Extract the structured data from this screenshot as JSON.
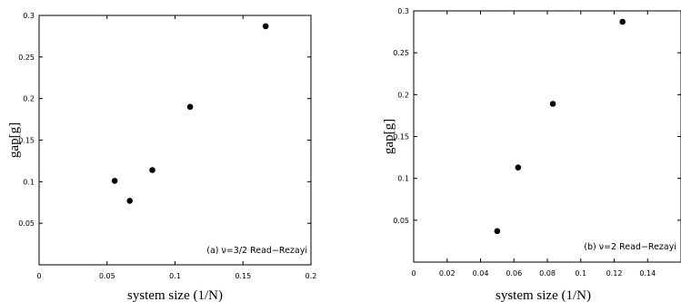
{
  "chart_data": [
    {
      "type": "scatter",
      "xlabel": "system size (1/N)",
      "ylabel": "gap[g]",
      "annotation": "(a)  ν=3/2  Read−Rezayi",
      "xlim": [
        0,
        0.2
      ],
      "ylim": [
        0,
        0.3
      ],
      "xticks": [
        0,
        0.05,
        0.1,
        0.15,
        0.2
      ],
      "xtick_labels": [
        "0",
        "0.05",
        "0.1",
        "0.15",
        "0.2"
      ],
      "yticks": [
        0.05,
        0.1,
        0.15,
        0.2,
        0.25,
        0.3
      ],
      "ytick_labels": [
        "0.05",
        "0.1",
        "0.15",
        "0.2",
        "0.25",
        "0.3"
      ],
      "grid": false,
      "points": [
        {
          "x": 0.0556,
          "y": 0.101
        },
        {
          "x": 0.0667,
          "y": 0.077
        },
        {
          "x": 0.0833,
          "y": 0.114
        },
        {
          "x": 0.1111,
          "y": 0.19
        },
        {
          "x": 0.1667,
          "y": 0.287
        }
      ]
    },
    {
      "type": "scatter",
      "xlabel": "system size (1/N)",
      "ylabel": "gap[g]",
      "annotation": "(b)  ν=2  Read−Rezayi",
      "xlim": [
        0,
        0.16
      ],
      "ylim": [
        0,
        0.3
      ],
      "xticks": [
        0,
        0.02,
        0.04,
        0.06,
        0.08,
        0.1,
        0.12,
        0.14
      ],
      "xtick_labels": [
        "0",
        "0.02",
        "0.04",
        "0.06",
        "0.08",
        "0.1",
        "0.12",
        "0.14"
      ],
      "yticks": [
        0.05,
        0.1,
        0.15,
        0.2,
        0.25,
        0.3
      ],
      "ytick_labels": [
        "0.05",
        "0.1",
        "0.15",
        "0.2",
        "0.25",
        "0.3"
      ],
      "grid": false,
      "points": [
        {
          "x": 0.05,
          "y": 0.037
        },
        {
          "x": 0.0625,
          "y": 0.113
        },
        {
          "x": 0.0833,
          "y": 0.189
        },
        {
          "x": 0.125,
          "y": 0.287
        }
      ]
    }
  ]
}
